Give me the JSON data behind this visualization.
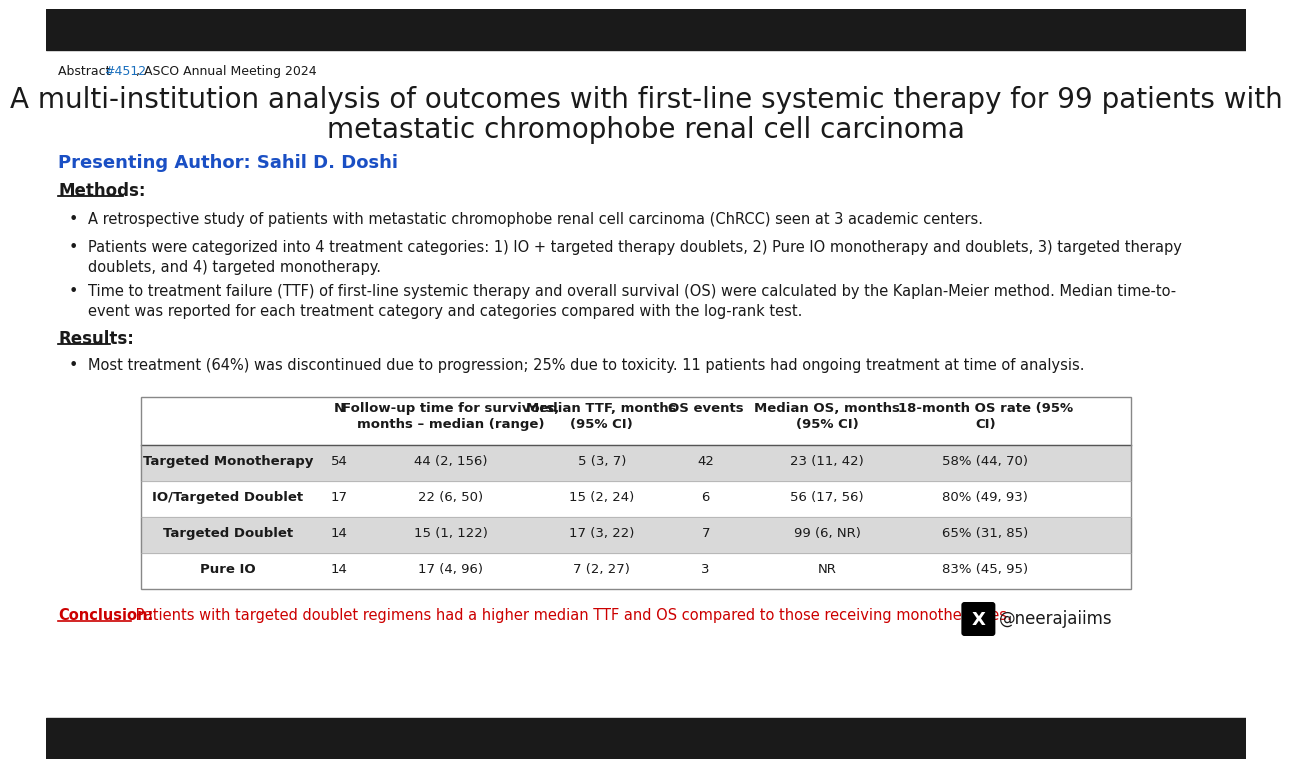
{
  "top_bar_color": "#1a1a1a",
  "top_bar_height": 41,
  "bg_color": "#ffffff",
  "abstract_label": "Abstract ",
  "abstract_number": "#4512",
  "abstract_number_color": "#1a6fbd",
  "abstract_suffix": ", ASCO Annual Meeting 2024",
  "abstract_fontsize": 9,
  "title_line1": "A multi-institution analysis of outcomes with first-line systemic therapy for 99 patients with",
  "title_line2": "metastatic chromophobe renal cell carcinoma",
  "title_fontsize": 20,
  "title_color": "#1a1a1a",
  "presenting_label": "Presenting Author: Sahil D. Doshi",
  "presenting_color": "#1a4fc4",
  "presenting_fontsize": 13,
  "methods_label": "Methods:",
  "methods_fontsize": 12,
  "bullet1": "A retrospective study of patients with metastatic chromophobe renal cell carcinoma (ChRCC) seen at 3 academic centers.",
  "bullet2": "Patients were categorized into 4 treatment categories: 1) IO + targeted therapy doublets, 2) Pure IO monotherapy and doublets, 3) targeted therapy\ndoublets, and 4) targeted monotherapy.",
  "bullet3": "Time to treatment failure (TTF) of first-line systemic therapy and overall survival (OS) were calculated by the Kaplan-Meier method. Median time-to-\nevent was reported for each treatment category and categories compared with the log-rank test.",
  "results_label": "Results:",
  "results_fontsize": 12,
  "bullet4": "Most treatment (64%) was discontinued due to progression; 25% due to toxicity. 11 patients had ongoing treatment at time of analysis.",
  "body_fontsize": 10.5,
  "table_header": [
    "",
    "N",
    "Follow-up time for survivors,\nmonths – median (range)",
    "Median TTF, months\n(95% CI)",
    "OS events",
    "Median OS, months\n(95% CI)",
    "18-month OS rate (95%\nCI)"
  ],
  "table_rows": [
    [
      "Targeted Monotherapy",
      "54",
      "44 (2, 156)",
      "5 (3, 7)",
      "42",
      "23 (11, 42)",
      "58% (44, 70)"
    ],
    [
      "IO/Targeted Doublet",
      "17",
      "22 (6, 50)",
      "15 (2, 24)",
      "6",
      "56 (17, 56)",
      "80% (49, 93)"
    ],
    [
      "Targeted Doublet",
      "14",
      "15 (1, 122)",
      "17 (3, 22)",
      "7",
      "99 (6, NR)",
      "65% (31, 85)"
    ],
    [
      "Pure IO",
      "14",
      "17 (4, 96)",
      "7 (2, 27)",
      "3",
      "NR",
      "83% (45, 95)"
    ]
  ],
  "row_shading": [
    true,
    false,
    true,
    false
  ],
  "shading_color": "#d9d9d9",
  "conclusion_label": "Conclusion:",
  "conclusion_label_color": "#cc0000",
  "conclusion_text": " Patients with targeted doublet regimens had a higher median TTF and OS compared to those receiving monotherapies.",
  "conclusion_fontsize": 10.5,
  "twitter_handle": "@neerajaiims",
  "twitter_fontsize": 12,
  "bottom_bar_color": "#1a1a1a",
  "table_fontsize": 9.5,
  "table_header_fontsize": 9.5
}
